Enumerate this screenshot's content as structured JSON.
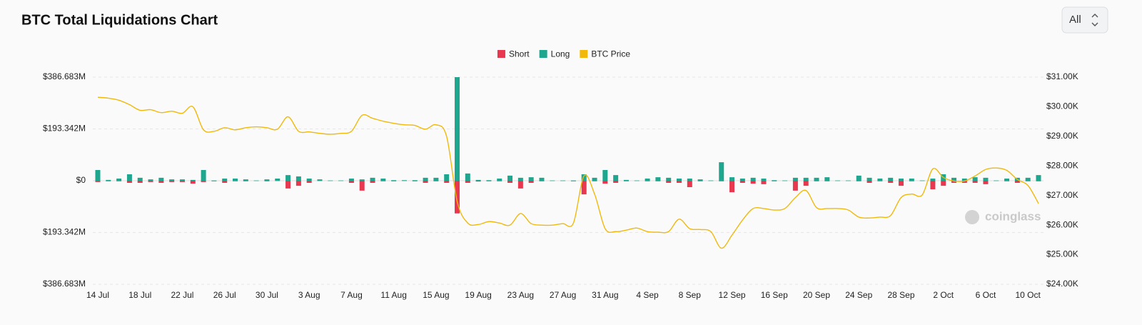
{
  "controls": {
    "range": "All"
  },
  "watermark": "coinglass",
  "chart_data": {
    "type": "bar",
    "title": "BTC Total Liquidations Chart",
    "categories": [
      "14 Jul",
      null,
      null,
      null,
      "18 Jul",
      null,
      null,
      null,
      "22 Jul",
      null,
      null,
      null,
      "26 Jul",
      null,
      null,
      null,
      "30 Jul",
      null,
      null,
      null,
      "3 Aug",
      null,
      null,
      null,
      "7 Aug",
      null,
      null,
      null,
      "11 Aug",
      null,
      null,
      null,
      "15 Aug",
      null,
      null,
      null,
      "19 Aug",
      null,
      null,
      null,
      "23 Aug",
      null,
      null,
      null,
      "27 Aug",
      null,
      null,
      null,
      "31 Aug",
      null,
      null,
      null,
      "4 Sep",
      null,
      null,
      null,
      "8 Sep",
      null,
      null,
      null,
      "12 Sep",
      null,
      null,
      null,
      "16 Sep",
      null,
      null,
      null,
      "20 Sep",
      null,
      null,
      null,
      "24 Sep",
      null,
      null,
      null,
      "28 Sep",
      null,
      null,
      null,
      "2 Oct",
      null,
      null,
      null,
      "6 Oct",
      null,
      null,
      null,
      "10 Oct",
      null
    ],
    "series": [
      {
        "name": "Short",
        "type": "bar",
        "color": "#e8384f",
        "values": [
          -5,
          -2,
          -2,
          -8,
          -8,
          -5,
          -8,
          -5,
          -5,
          -11,
          -5,
          -2,
          -8,
          -2,
          -2,
          -1,
          -2,
          -1,
          -29,
          -19,
          -8,
          -1,
          -1,
          -1,
          -8,
          -37,
          -8,
          -2,
          -2,
          -1,
          -2,
          -8,
          -2,
          -8,
          -122,
          -8,
          -3,
          -2,
          -2,
          -8,
          -29,
          -8,
          -2,
          -1,
          -1,
          -2,
          -51,
          -2,
          -11,
          -8,
          -2,
          -1,
          -2,
          -2,
          -8,
          -8,
          -24,
          -2,
          -1,
          -2,
          -43,
          -8,
          -11,
          -13,
          -2,
          -1,
          -37,
          -19,
          -2,
          -2,
          -1,
          -1,
          -2,
          -8,
          -2,
          -8,
          -19,
          -2,
          -1,
          -32,
          -19,
          -8,
          -8,
          -8,
          -13,
          -1,
          -2,
          -8,
          -2,
          -2
        ]
      },
      {
        "name": "Long",
        "type": "bar",
        "color": "#1fa68f",
        "values": [
          40,
          3,
          8,
          24,
          11,
          5,
          11,
          5,
          5,
          3,
          40,
          1,
          8,
          8,
          5,
          1,
          5,
          8,
          21,
          16,
          8,
          5,
          1,
          1,
          8,
          5,
          11,
          8,
          2,
          2,
          2,
          11,
          11,
          24,
          386.683,
          27,
          3,
          2,
          8,
          19,
          11,
          13,
          11,
          1,
          1,
          1,
          24,
          11,
          40,
          21,
          3,
          1,
          8,
          13,
          11,
          8,
          8,
          5,
          1,
          69,
          13,
          8,
          11,
          8,
          2,
          1,
          11,
          11,
          11,
          13,
          1,
          1,
          19,
          11,
          8,
          11,
          8,
          8,
          1,
          8,
          24,
          11,
          8,
          13,
          11,
          1,
          8,
          11,
          11,
          21
        ]
      },
      {
        "name": "BTC Price",
        "type": "line",
        "axis": "y2",
        "color": "#f0b90b",
        "values": [
          30320,
          30290,
          30220,
          30070,
          29880,
          29900,
          29800,
          29850,
          29780,
          30000,
          29220,
          29170,
          29290,
          29220,
          29290,
          29320,
          29290,
          29240,
          29660,
          29170,
          29150,
          29100,
          29070,
          29100,
          29170,
          29710,
          29610,
          29510,
          29440,
          29390,
          29370,
          29240,
          29390,
          29000,
          26800,
          26070,
          26020,
          26120,
          26070,
          26000,
          26390,
          26050,
          26000,
          26000,
          26050,
          26070,
          27660,
          27050,
          25880,
          25780,
          25830,
          25900,
          25780,
          25760,
          25780,
          26200,
          25880,
          25850,
          25780,
          25220,
          25660,
          26170,
          26560,
          26560,
          26510,
          26560,
          26930,
          27170,
          26590,
          26560,
          26560,
          26510,
          26270,
          26240,
          26270,
          26320,
          26930,
          27050,
          27020,
          27900,
          27610,
          27490,
          27490,
          27660,
          27880,
          27930,
          27850,
          27540,
          27340,
          26730
        ]
      }
    ],
    "ylim": [
      -386.683,
      386.683
    ],
    "yticks": [
      {
        "value": 386.683,
        "label": "$386.683M"
      },
      {
        "value": 193.342,
        "label": "$193.342M"
      },
      {
        "value": 0,
        "label": "$0"
      },
      {
        "value": -193.342,
        "label": "$193.342M"
      },
      {
        "value": -386.683,
        "label": "$386.683M"
      }
    ],
    "y2lim": [
      24000,
      31000
    ],
    "y2ticks": [
      {
        "value": 31000,
        "label": "$31.00K"
      },
      {
        "value": 30000,
        "label": "$30.00K"
      },
      {
        "value": 29000,
        "label": "$29.00K"
      },
      {
        "value": 28000,
        "label": "$28.00K"
      },
      {
        "value": 27000,
        "label": "$27.00K"
      },
      {
        "value": 26000,
        "label": "$26.00K"
      },
      {
        "value": 25000,
        "label": "$25.00K"
      },
      {
        "value": 24000,
        "label": "$24.00K"
      }
    ],
    "grid": true,
    "legend": "top"
  }
}
